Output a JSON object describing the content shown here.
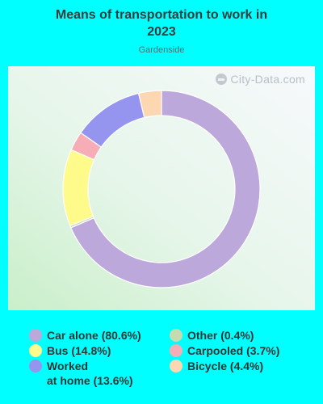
{
  "title": "Means of transportation to work in\n2023",
  "subtitle": "Gardenside",
  "watermark": "City-Data.com",
  "chart_data": {
    "type": "pie",
    "variant": "donut",
    "title": "Means of transportation to work in 2023",
    "subtitle": "Gardenside",
    "categories": [
      "Car alone",
      "Other",
      "Bus",
      "Carpooled",
      "Worked at home",
      "Bicycle"
    ],
    "values": [
      80.6,
      0.4,
      14.8,
      3.7,
      13.6,
      4.4
    ],
    "colors": [
      "#bca8da",
      "#c5dbb0",
      "#fffb8a",
      "#f6adb5",
      "#9595ef",
      "#fdd7b1"
    ],
    "slice_order_clockwise_from_top": [
      "Car alone",
      "Other",
      "Bus",
      "Carpooled",
      "Worked at home",
      "Bicycle"
    ]
  },
  "legend": [
    {
      "label": "Car alone (80.6%)",
      "color": "#bca8da"
    },
    {
      "label": "Bus (14.8%)",
      "color": "#fffb8a"
    },
    {
      "label": "Worked\nat home (13.6%)",
      "color": "#9595ef"
    },
    {
      "label": "Other (0.4%)",
      "color": "#c5dbb0"
    },
    {
      "label": "Carpooled (3.7%)",
      "color": "#f6adb5"
    },
    {
      "label": "Bicycle (4.4%)",
      "color": "#fdd7b1"
    }
  ]
}
